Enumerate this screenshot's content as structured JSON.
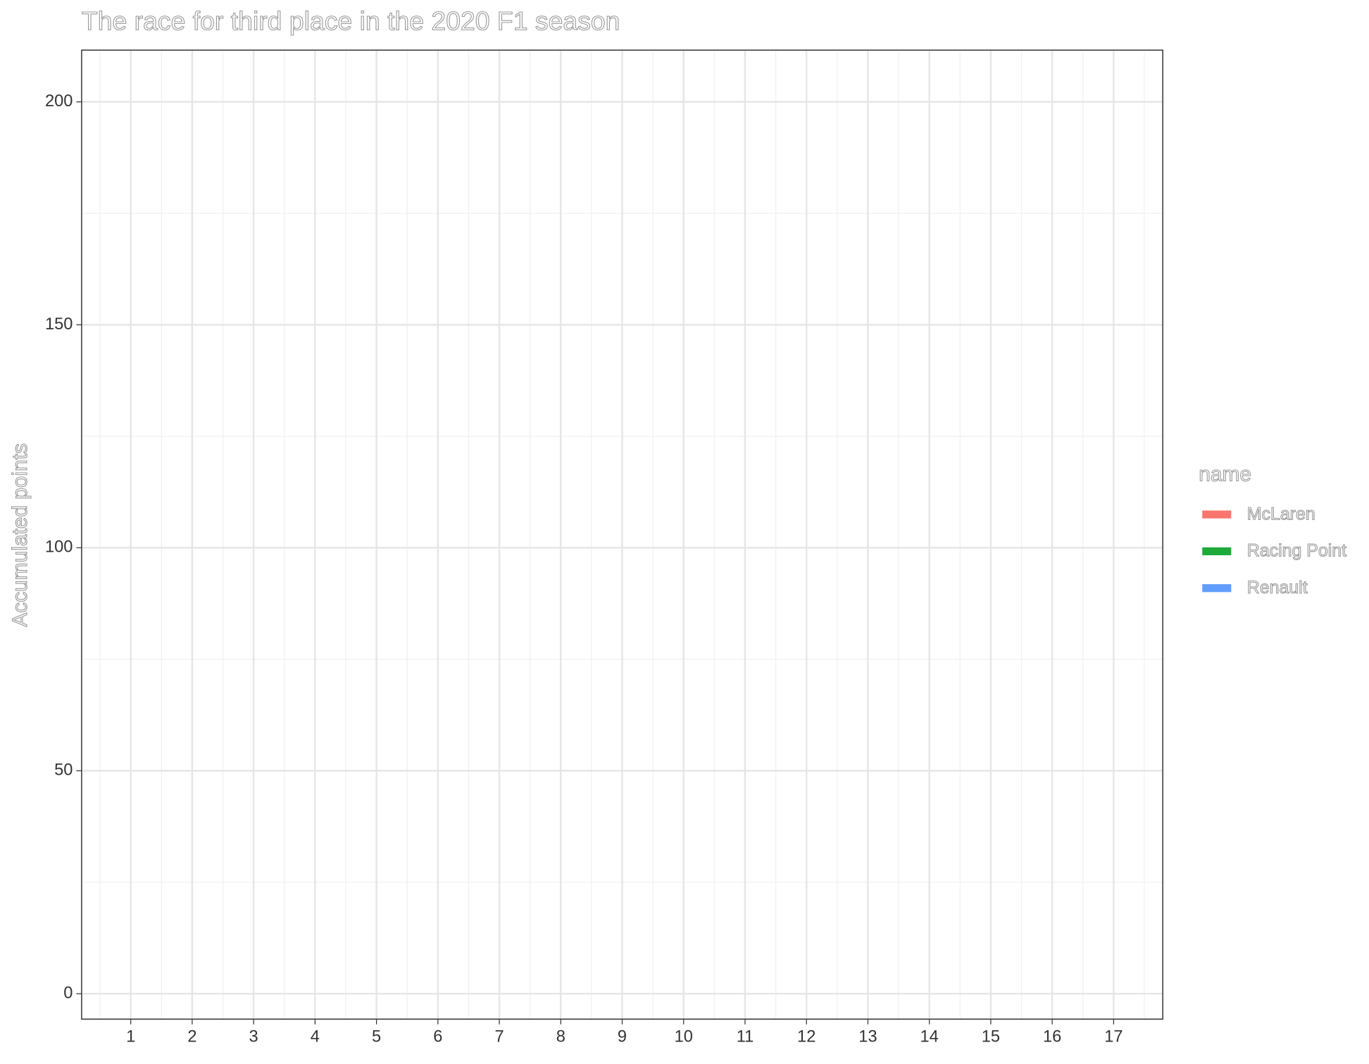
{
  "chart_data": {
    "type": "line",
    "title": "The race for third place in the 2020 F1 season",
    "y_label": "Accumulated points",
    "legend_title": "name",
    "legend": "right",
    "grid": true,
    "xlim": [
      0.2,
      17.8
    ],
    "xticks": [
      1,
      2,
      3,
      4,
      5,
      6,
      7,
      8,
      9,
      10,
      11,
      12,
      13,
      14,
      15,
      16,
      17
    ],
    "ylim": [
      -5.7,
      211.6
    ],
    "yticks": [
      0,
      50,
      100,
      150,
      200
    ],
    "series": [
      {
        "name": "McLaren",
        "color": "#F8766D"
      },
      {
        "name": "Racing Point",
        "color": "#1DAA3A"
      },
      {
        "name": "Renault",
        "color": "#619CFF"
      }
    ]
  }
}
